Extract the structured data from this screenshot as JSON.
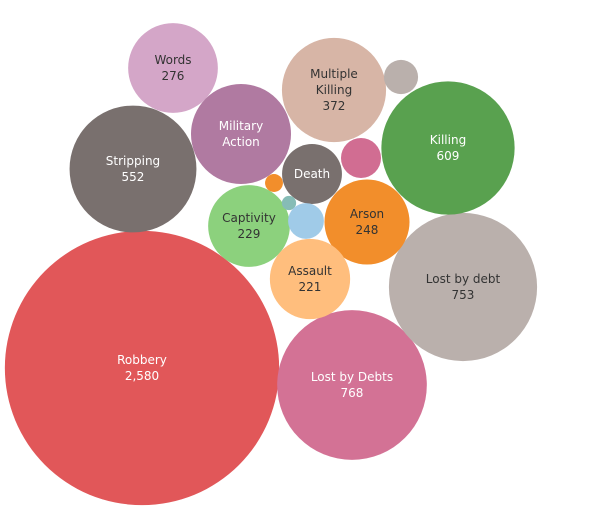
{
  "chart_data": {
    "type": "packed-bubble",
    "categories": [
      "Robbery",
      "Lost by Debts",
      "Lost by debt",
      "Killing",
      "Stripping",
      "Multiple Killing",
      "Words",
      "Arson",
      "Captivity",
      "Assault",
      "Military Action",
      "Death",
      null,
      null,
      null,
      null,
      null
    ],
    "values": [
      2580,
      768,
      753,
      609,
      552,
      372,
      276,
      248,
      229,
      221,
      343,
      123,
      55,
      40,
      11,
      7,
      44
    ],
    "value_labels": [
      "2,580",
      "768",
      "753",
      "609",
      "552",
      "372",
      "276",
      "248",
      "229",
      "221",
      null,
      null,
      null,
      null,
      null,
      null,
      null
    ],
    "colors": [
      "#e15759",
      "#d37295",
      "#bab0ac",
      "#59a14f",
      "#79706e",
      "#d7b5a6",
      "#d4a6c8",
      "#f28e2b",
      "#8cd17d",
      "#ffbe7d",
      "#b07aa1",
      "#79706e",
      "#d16d92",
      "#bab0ac",
      "#f28e2b",
      "#86bcb6",
      "#a0cbe8"
    ]
  }
}
